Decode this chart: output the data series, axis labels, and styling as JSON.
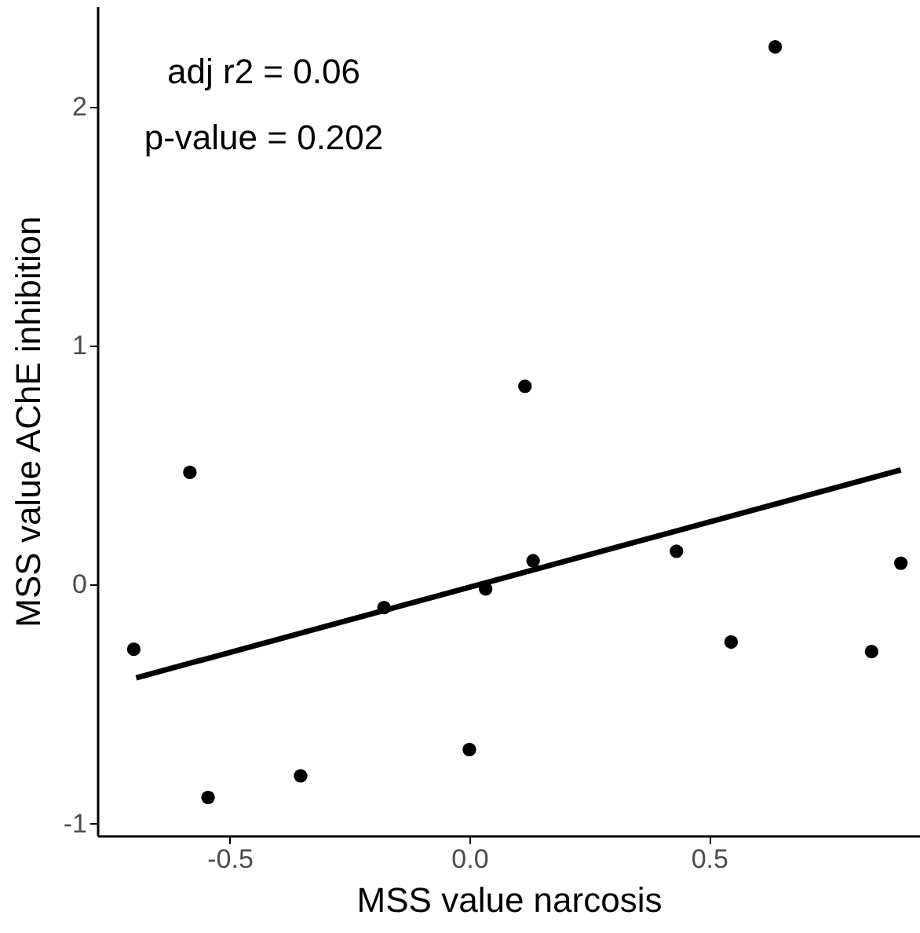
{
  "chart_data": {
    "type": "scatter",
    "xlabel": "MSS value narcosis",
    "ylabel": "MSS value AChE inhibition",
    "annotations": [
      "adj r2 = 0.06",
      "p-value = 0.202"
    ],
    "xlim": [
      -0.776,
      0.94
    ],
    "ylim": [
      -1.05,
      2.42
    ],
    "xticks": [
      {
        "value": -0.5,
        "label": "-0.5"
      },
      {
        "value": 0,
        "label": "0.0"
      },
      {
        "value": 0.5,
        "label": "0.5"
      }
    ],
    "yticks": [
      -1,
      0,
      1,
      2
    ],
    "grid": false,
    "series": [
      {
        "marker": "circle",
        "color": "#000000",
        "x": [
          -0.7,
          -0.583,
          -0.545,
          -0.352,
          -0.178,
          0.0,
          0.034,
          0.116,
          0.133,
          0.432,
          0.546,
          0.638,
          0.839,
          0.9
        ],
        "values": [
          -0.27,
          0.47,
          -0.89,
          -0.8,
          -0.096,
          -0.69,
          -0.018,
          0.83,
          0.1,
          0.14,
          -0.24,
          2.25,
          -0.28,
          0.09
        ]
      },
      {
        "type": "line",
        "color": "#000000",
        "x": [
          -0.695,
          0.9
        ],
        "values": [
          -0.39,
          0.48
        ]
      }
    ]
  }
}
